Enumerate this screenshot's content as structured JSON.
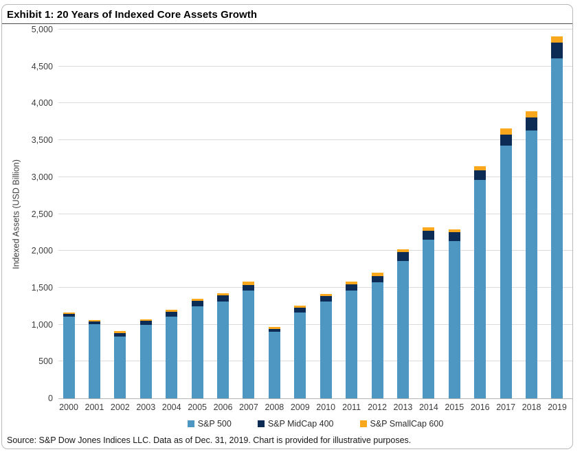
{
  "title": "Exhibit 1: 20 Years of Indexed Core Assets Growth",
  "source_note": "Source: S&P Dow Jones Indices LLC. Data as of Dec. 31, 2019. Chart is provided for illustrative purposes.",
  "colors": {
    "sp500": "#4F97C3",
    "midcap": "#0D2C55",
    "smallcap": "#F9A81D",
    "gridline": "#DBDBDB",
    "zero_line": "#B5B5B5",
    "card_border": "#B9B9B9",
    "title_rule": "#4A4A4A",
    "axis_text": "#3D3D3D"
  },
  "chart_data": {
    "type": "bar",
    "stacked": true,
    "title": "Exhibit 1: 20 Years of Indexed Core Assets Growth",
    "xlabel": "",
    "ylabel": "Indexed Assets (USD Billion)",
    "ylim": [
      0,
      5000
    ],
    "ytick_step": 500,
    "ytick_labels": [
      "0",
      "500",
      "1,000",
      "1,500",
      "2,000",
      "2,500",
      "3,000",
      "3,500",
      "4,000",
      "4,500",
      "5,000"
    ],
    "grid": true,
    "legend_position": "bottom",
    "categories": [
      "2000",
      "2001",
      "2002",
      "2003",
      "2004",
      "2005",
      "2006",
      "2007",
      "2008",
      "2009",
      "2010",
      "2011",
      "2012",
      "2013",
      "2014",
      "2015",
      "2016",
      "2017",
      "2018",
      "2019"
    ],
    "series": [
      {
        "name": "S&P 500",
        "color": "#4F97C3",
        "values": [
          1105,
          1005,
          840,
          1000,
          1105,
          1245,
          1315,
          1460,
          900,
          1165,
          1315,
          1465,
          1570,
          1865,
          2150,
          2135,
          2960,
          3430,
          3630,
          4610
        ]
      },
      {
        "name": "S&P MidCap 400",
        "color": "#0D2C55",
        "values": [
          45,
          40,
          45,
          50,
          70,
          80,
          80,
          80,
          40,
          60,
          75,
          85,
          90,
          120,
          125,
          120,
          130,
          150,
          175,
          210
        ]
      },
      {
        "name": "S&P SmallCap 600",
        "color": "#F9A81D",
        "values": [
          15,
          20,
          25,
          25,
          30,
          30,
          30,
          45,
          25,
          30,
          25,
          35,
          40,
          40,
          40,
          35,
          60,
          80,
          85,
          90
        ]
      }
    ]
  }
}
